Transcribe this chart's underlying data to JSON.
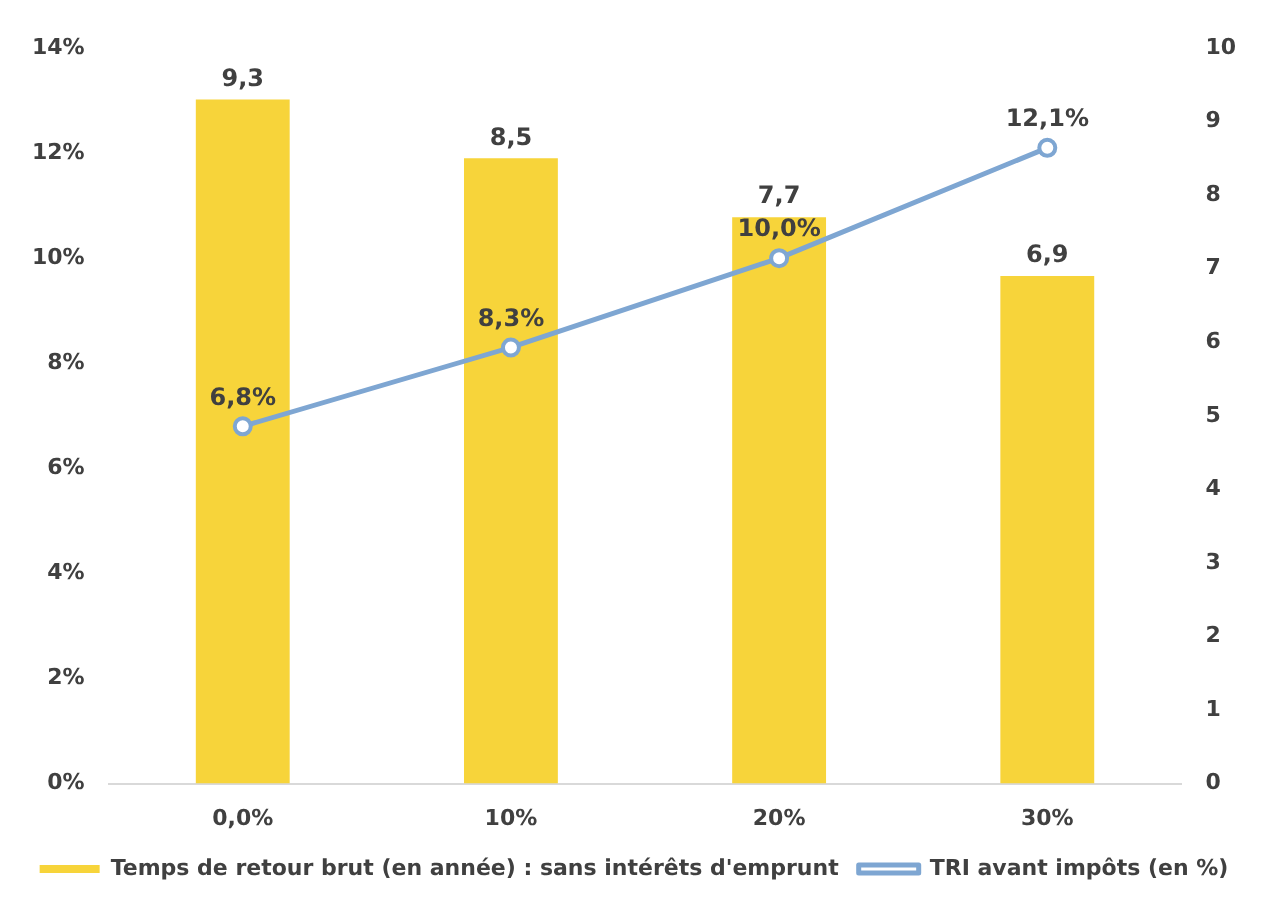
{
  "chart_data": {
    "type": "bar",
    "categories": [
      "0,0%",
      "10%",
      "20%",
      "30%"
    ],
    "series": [
      {
        "name": "Temps de retour brut (en année) : sans intérêts d'emprunt",
        "axis": "y2",
        "color": "#f7d43a",
        "values": [
          9.3,
          8.5,
          7.7,
          6.9
        ],
        "value_labels": [
          "9,3",
          "8,5",
          "7,7",
          "6,9"
        ]
      },
      {
        "name": "TRI avant impôts (en %)",
        "type": "line",
        "axis": "y",
        "color": "#7ea6d2",
        "marker": "circle",
        "values": [
          6.8,
          8.3,
          10.0,
          12.1
        ],
        "value_labels": [
          "6,8%",
          "8,3%",
          "10,0%",
          "12,1%"
        ]
      }
    ],
    "ylim": [
      0,
      14
    ],
    "yticks": [
      {
        "value": 0,
        "label": "0%"
      },
      {
        "value": 2,
        "label": "2%"
      },
      {
        "value": 4,
        "label": "4%"
      },
      {
        "value": 6,
        "label": "6%"
      },
      {
        "value": 8,
        "label": "8%"
      },
      {
        "value": 10,
        "label": "10%"
      },
      {
        "value": 12,
        "label": "12%"
      },
      {
        "value": 14,
        "label": "14%"
      }
    ],
    "y2lim": [
      0,
      10
    ],
    "y2ticks": [
      0,
      1,
      2,
      3,
      4,
      5,
      6,
      7,
      8,
      9,
      10
    ],
    "grid": false,
    "legend": "bottom"
  }
}
